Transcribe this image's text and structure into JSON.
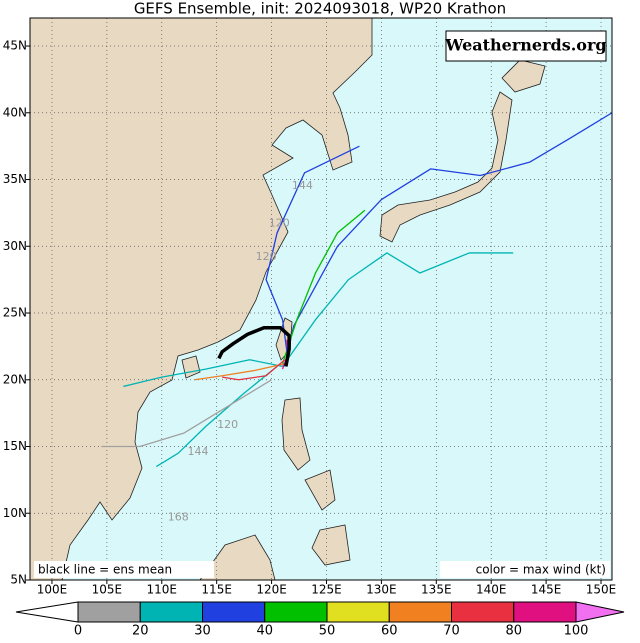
{
  "title": "GEFS Ensemble, init: 2024093018, WP20 Krathon",
  "watermark": "Weathernerds.org",
  "note_left": "black line = ens mean",
  "note_right": "color = max wind (kt)",
  "map": {
    "xlim": [
      98,
      151
    ],
    "ylim": [
      5,
      47.1
    ],
    "xticks": [
      {
        "value": 100,
        "label": "100E"
      },
      {
        "value": 105,
        "label": "105E"
      },
      {
        "value": 110,
        "label": "110E"
      },
      {
        "value": 115,
        "label": "115E"
      },
      {
        "value": 120,
        "label": "120E"
      },
      {
        "value": 125,
        "label": "125E"
      },
      {
        "value": 130,
        "label": "130E"
      },
      {
        "value": 135,
        "label": "135E"
      },
      {
        "value": 140,
        "label": "140E"
      },
      {
        "value": 145,
        "label": "145E"
      },
      {
        "value": 150,
        "label": "150E"
      }
    ],
    "yticks": [
      {
        "value": 5,
        "label": "5N"
      },
      {
        "value": 10,
        "label": "10N"
      },
      {
        "value": 15,
        "label": "15N"
      },
      {
        "value": 20,
        "label": "20N"
      },
      {
        "value": 25,
        "label": "25N"
      },
      {
        "value": 30,
        "label": "30N"
      },
      {
        "value": 35,
        "label": "35N"
      },
      {
        "value": 40,
        "label": "40N"
      },
      {
        "value": 45,
        "label": "45N"
      }
    ],
    "grid": true,
    "mean_track": {
      "color": "#000000",
      "points": [
        [
          121.3,
          21.0
        ],
        [
          121.6,
          22.3
        ],
        [
          121.6,
          23.3
        ],
        [
          120.8,
          23.9
        ],
        [
          119.3,
          23.9
        ],
        [
          117.8,
          23.4
        ],
        [
          116.5,
          22.7
        ],
        [
          115.5,
          22.1
        ],
        [
          115.2,
          21.6
        ]
      ]
    },
    "tracks": [
      {
        "color": "#2040e0",
        "points": [
          [
            121.2,
            21.0
          ],
          [
            122.0,
            24.0
          ],
          [
            124.0,
            27.0
          ],
          [
            126.0,
            30.0
          ],
          [
            130.0,
            33.5
          ],
          [
            134.5,
            35.8
          ],
          [
            139.0,
            35.3
          ],
          [
            143.5,
            36.3
          ],
          [
            147.0,
            38.0
          ],
          [
            151.0,
            40.0
          ]
        ]
      },
      {
        "color": "#00c000",
        "points": [
          [
            121.0,
            21.2
          ],
          [
            122.3,
            24.5
          ],
          [
            124.0,
            28.0
          ],
          [
            126.0,
            31.0
          ],
          [
            128.5,
            32.7
          ]
        ]
      },
      {
        "color": "#00b4b4",
        "points": [
          [
            121.0,
            21.0
          ],
          [
            124.0,
            24.5
          ],
          [
            127.0,
            27.5
          ],
          [
            130.5,
            29.5
          ],
          [
            133.5,
            28.0
          ],
          [
            138.0,
            29.5
          ],
          [
            142.0,
            29.5
          ]
        ]
      },
      {
        "color": "#00b4b4",
        "points": [
          [
            121.0,
            21.0
          ],
          [
            118.0,
            21.5
          ],
          [
            114.0,
            20.8
          ],
          [
            110.0,
            20.2
          ],
          [
            106.5,
            19.5
          ]
        ]
      },
      {
        "color": "#00b4b4",
        "points": [
          [
            120.5,
            21.0
          ],
          [
            117.5,
            19.0
          ],
          [
            114.0,
            16.5
          ],
          [
            111.5,
            14.5
          ],
          [
            109.5,
            13.5
          ]
        ]
      },
      {
        "color": "#f08020",
        "points": [
          [
            121.2,
            21.2
          ],
          [
            118.5,
            20.7
          ],
          [
            115.5,
            20.3
          ],
          [
            113.0,
            20.0
          ]
        ]
      },
      {
        "color": "#e83040",
        "points": [
          [
            121.2,
            21.5
          ],
          [
            119.5,
            20.3
          ],
          [
            117.0,
            20.0
          ],
          [
            115.5,
            20.2
          ]
        ]
      },
      {
        "color": "#e01080",
        "points": [
          [
            121.0,
            20.8
          ],
          [
            121.5,
            22.0
          ],
          [
            121.4,
            23.0
          ]
        ]
      },
      {
        "color": "#2040e0",
        "points": [
          [
            121.5,
            21.5
          ],
          [
            121.0,
            24.5
          ],
          [
            119.5,
            27.5
          ],
          [
            120.5,
            31.0
          ],
          [
            123.0,
            35.5
          ],
          [
            128.0,
            37.5
          ]
        ]
      },
      {
        "color": "#a0a0a0",
        "points": [
          [
            120.0,
            20.0
          ],
          [
            116.0,
            18.0
          ],
          [
            112.0,
            16.0
          ],
          [
            108.0,
            15.0
          ],
          [
            104.5,
            15.0
          ]
        ]
      }
    ],
    "annotations": [
      {
        "text": "144",
        "lon": 122.8,
        "lat": 34.5
      },
      {
        "text": "120",
        "lon": 120.7,
        "lat": 31.7
      },
      {
        "text": "120",
        "lon": 119.5,
        "lat": 29.2
      },
      {
        "text": "168",
        "lon": 111.5,
        "lat": 9.7
      },
      {
        "text": "144",
        "lon": 113.3,
        "lat": 14.6
      },
      {
        "text": "120",
        "lon": 116.0,
        "lat": 16.6
      }
    ]
  },
  "colorbar": {
    "bounds": [
      0,
      20,
      30,
      40,
      50,
      60,
      70,
      80,
      100
    ],
    "colors": [
      "#a0a0a0",
      "#00b4b4",
      "#2040e0",
      "#00c000",
      "#e0e020",
      "#f08020",
      "#e83040",
      "#e01080"
    ],
    "under": "#ffffff",
    "over": "#f070f0"
  }
}
